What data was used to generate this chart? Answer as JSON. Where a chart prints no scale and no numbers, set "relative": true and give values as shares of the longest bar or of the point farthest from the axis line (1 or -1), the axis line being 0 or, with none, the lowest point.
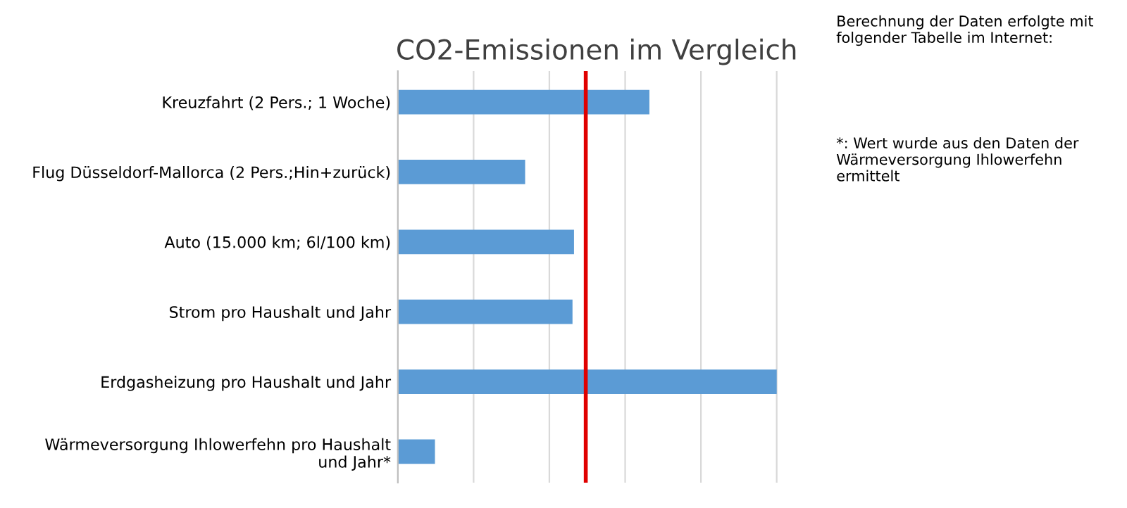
{
  "chart_data": {
    "type": "bar",
    "orientation": "horizontal",
    "relative": true,
    "title": "CO2-Emissionen im Vergleich",
    "categories": [
      "Kreuzfahrt (2 Pers.; 1 Woche)",
      "Flug Düsseldorf-Mallorca (2 Pers.;Hin+zurück)",
      "Auto (15.000 km; 6l/100 km)",
      "Strom pro Haushalt und Jahr",
      "Erdgasheizung pro Haushalt und Jahr",
      "Wärmeversorgung Ihlowerfehn pro Haushalt\nund Jahr*"
    ],
    "values": [
      0.664,
      0.336,
      0.465,
      0.461,
      1,
      0.098
    ],
    "color": "#5b9bd5",
    "grid": "x",
    "ref_lines": [
      {
        "axis": "x",
        "value": 0.496,
        "color": "#e00000"
      }
    ],
    "annotations": [
      "Berechnung der Daten erfolgte mit folgender Tabelle im Internet:",
      "*: Wert wurde aus den Daten der Wärmeversorgung Ihlowerfehn ermittelt"
    ]
  }
}
